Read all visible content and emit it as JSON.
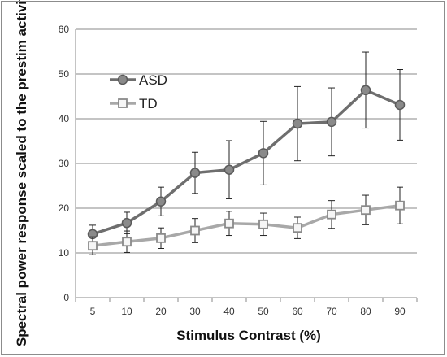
{
  "chart_data": {
    "type": "line",
    "title": "",
    "xlabel": "Stimulus Contrast (%)",
    "ylabel": "Spectral power response scaled to the prestim activity",
    "categories": [
      "5",
      "10",
      "20",
      "30",
      "40",
      "50",
      "60",
      "70",
      "80",
      "90"
    ],
    "ylim": [
      0,
      60
    ],
    "yticks": [
      0,
      10,
      20,
      30,
      40,
      50,
      60
    ],
    "grid": true,
    "legend_position": "top-left",
    "series": [
      {
        "name": "ASD",
        "color": "#6e6e6e",
        "marker": "circle",
        "values": [
          14.2,
          16.7,
          21.5,
          27.9,
          28.6,
          32.3,
          38.9,
          39.3,
          46.4,
          43.1
        ],
        "error": [
          2.0,
          2.4,
          3.2,
          4.6,
          6.5,
          7.1,
          8.3,
          7.6,
          8.5,
          7.9
        ]
      },
      {
        "name": "TD",
        "color": "#a8a8a8",
        "marker": "square",
        "values": [
          11.6,
          12.5,
          13.3,
          15.0,
          16.6,
          16.4,
          15.6,
          18.6,
          19.6,
          20.6
        ],
        "error": [
          2.0,
          2.4,
          2.3,
          2.7,
          2.7,
          2.5,
          2.4,
          3.1,
          3.3,
          4.1
        ]
      }
    ]
  }
}
